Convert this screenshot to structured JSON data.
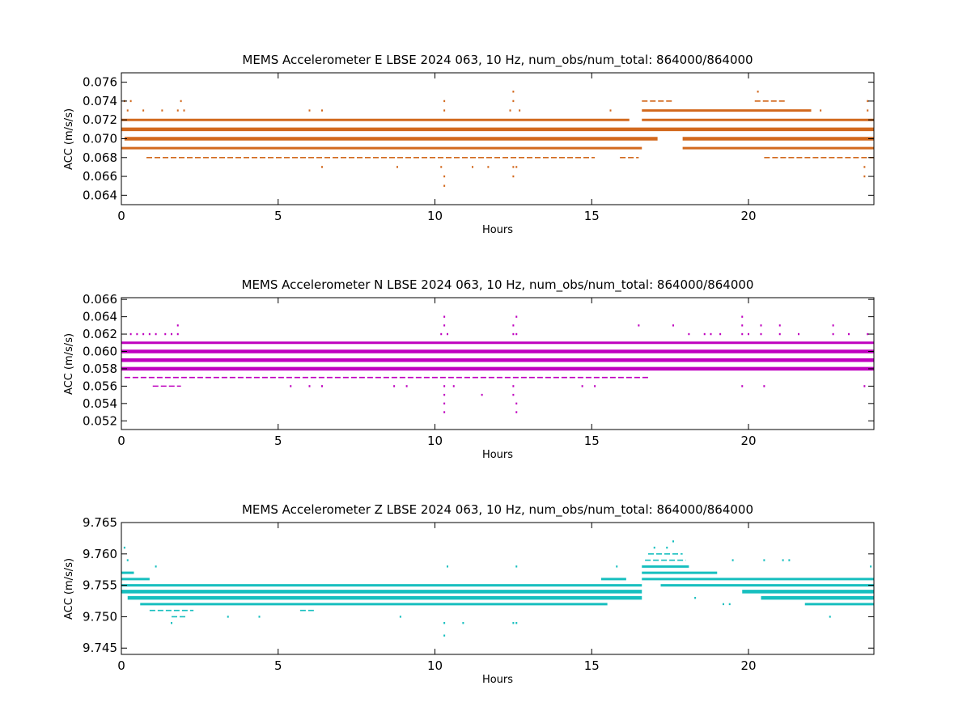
{
  "chart_data": [
    {
      "type": "scatter",
      "title": "MEMS Accelerometer E LBSE 2024 063, 10 Hz, num_obs/num_total: 864000/864000",
      "xlabel": "Hours",
      "ylabel": "ACC (m/s/s)",
      "xlim": [
        0,
        24
      ],
      "ylim": [
        0.063,
        0.077
      ],
      "xticks": [
        0,
        5,
        10,
        15,
        20
      ],
      "yticks": [
        0.064,
        0.066,
        0.068,
        0.07,
        0.072,
        0.074,
        0.076
      ],
      "yticklabels": [
        "0.064",
        "0.066",
        "0.068",
        "0.070",
        "0.072",
        "0.074",
        "0.076"
      ],
      "color": "#d2691e",
      "grid": false,
      "bands": [
        {
          "y": 0.071,
          "segments": [
            [
              0,
              24
            ]
          ],
          "weight": 3
        },
        {
          "y": 0.07,
          "segments": [
            [
              0.1,
              17.1
            ],
            [
              17.9,
              24
            ]
          ],
          "weight": 3
        },
        {
          "y": 0.072,
          "segments": [
            [
              0,
              16.2
            ],
            [
              16.6,
              24
            ]
          ],
          "weight": 2
        },
        {
          "y": 0.069,
          "segments": [
            [
              0,
              16.6
            ],
            [
              17.9,
              24
            ]
          ],
          "weight": 2
        },
        {
          "y": 0.073,
          "segments": [
            [
              16.6,
              22
            ]
          ],
          "weight": 2
        },
        {
          "y": 0.074,
          "segments": [
            [
              16.6,
              17.6
            ],
            [
              20.2,
              21.2
            ]
          ],
          "weight": 1
        },
        {
          "y": 0.068,
          "segments": [
            [
              0.8,
              15.1
            ],
            [
              15.9,
              16.5
            ],
            [
              20.5,
              24
            ]
          ],
          "weight": 1
        }
      ],
      "points": [
        {
          "x": 0.1,
          "y": 0.074
        },
        {
          "x": 0.3,
          "y": 0.074
        },
        {
          "x": 1.9,
          "y": 0.074
        },
        {
          "x": 10.3,
          "y": 0.074
        },
        {
          "x": 12.5,
          "y": 0.074
        },
        {
          "x": 12.5,
          "y": 0.075
        },
        {
          "x": 20.3,
          "y": 0.075
        },
        {
          "x": 23.8,
          "y": 0.074
        },
        {
          "x": 0.2,
          "y": 0.073
        },
        {
          "x": 0.7,
          "y": 0.073
        },
        {
          "x": 1.3,
          "y": 0.073
        },
        {
          "x": 1.8,
          "y": 0.073
        },
        {
          "x": 2.0,
          "y": 0.073
        },
        {
          "x": 6.0,
          "y": 0.073
        },
        {
          "x": 6.4,
          "y": 0.073
        },
        {
          "x": 10.3,
          "y": 0.073
        },
        {
          "x": 12.4,
          "y": 0.073
        },
        {
          "x": 12.7,
          "y": 0.073
        },
        {
          "x": 15.6,
          "y": 0.073
        },
        {
          "x": 22.3,
          "y": 0.073
        },
        {
          "x": 23.8,
          "y": 0.073
        },
        {
          "x": 6.4,
          "y": 0.067
        },
        {
          "x": 8.8,
          "y": 0.067
        },
        {
          "x": 10.2,
          "y": 0.067
        },
        {
          "x": 11.2,
          "y": 0.067
        },
        {
          "x": 11.7,
          "y": 0.067
        },
        {
          "x": 12.5,
          "y": 0.067
        },
        {
          "x": 12.6,
          "y": 0.067
        },
        {
          "x": 23.7,
          "y": 0.067
        },
        {
          "x": 10.3,
          "y": 0.066
        },
        {
          "x": 12.5,
          "y": 0.066
        },
        {
          "x": 23.7,
          "y": 0.066
        },
        {
          "x": 10.3,
          "y": 0.065
        }
      ]
    },
    {
      "type": "scatter",
      "title": "MEMS Accelerometer N LBSE 2024 063, 10 Hz, num_obs/num_total: 864000/864000",
      "xlabel": "Hours",
      "ylabel": "ACC (m/s/s)",
      "xlim": [
        0,
        24
      ],
      "ylim": [
        0.051,
        0.0662
      ],
      "xticks": [
        0,
        5,
        10,
        15,
        20
      ],
      "yticks": [
        0.052,
        0.054,
        0.056,
        0.058,
        0.06,
        0.062,
        0.064,
        0.066
      ],
      "yticklabels": [
        "0.052",
        "0.054",
        "0.056",
        "0.058",
        "0.060",
        "0.062",
        "0.064",
        "0.066"
      ],
      "color": "#bf00bf",
      "grid": false,
      "bands": [
        {
          "y": 0.06,
          "segments": [
            [
              0,
              24
            ]
          ],
          "weight": 3
        },
        {
          "y": 0.059,
          "segments": [
            [
              0,
              24
            ]
          ],
          "weight": 3
        },
        {
          "y": 0.058,
          "segments": [
            [
              0,
              24
            ]
          ],
          "weight": 3
        },
        {
          "y": 0.061,
          "segments": [
            [
              0,
              24
            ]
          ],
          "weight": 2
        },
        {
          "y": 0.057,
          "segments": [
            [
              0.1,
              16.8
            ]
          ],
          "weight": 1
        },
        {
          "y": 0.056,
          "segments": [
            [
              1.0,
              1.9
            ]
          ],
          "weight": 1
        }
      ],
      "points": [
        {
          "x": 10.3,
          "y": 0.064
        },
        {
          "x": 12.6,
          "y": 0.064
        },
        {
          "x": 19.8,
          "y": 0.064
        },
        {
          "x": 1.8,
          "y": 0.063
        },
        {
          "x": 10.3,
          "y": 0.063
        },
        {
          "x": 12.5,
          "y": 0.063
        },
        {
          "x": 16.5,
          "y": 0.063
        },
        {
          "x": 17.6,
          "y": 0.063
        },
        {
          "x": 19.8,
          "y": 0.063
        },
        {
          "x": 20.4,
          "y": 0.063
        },
        {
          "x": 21.0,
          "y": 0.063
        },
        {
          "x": 22.7,
          "y": 0.063
        },
        {
          "x": 0.3,
          "y": 0.062
        },
        {
          "x": 0.5,
          "y": 0.062
        },
        {
          "x": 0.7,
          "y": 0.062
        },
        {
          "x": 0.9,
          "y": 0.062
        },
        {
          "x": 1.1,
          "y": 0.062
        },
        {
          "x": 1.4,
          "y": 0.062
        },
        {
          "x": 1.6,
          "y": 0.062
        },
        {
          "x": 1.8,
          "y": 0.062
        },
        {
          "x": 10.2,
          "y": 0.062
        },
        {
          "x": 10.4,
          "y": 0.062
        },
        {
          "x": 12.5,
          "y": 0.062
        },
        {
          "x": 12.6,
          "y": 0.062
        },
        {
          "x": 18.1,
          "y": 0.062
        },
        {
          "x": 18.6,
          "y": 0.062
        },
        {
          "x": 18.8,
          "y": 0.062
        },
        {
          "x": 19.1,
          "y": 0.062
        },
        {
          "x": 19.8,
          "y": 0.062
        },
        {
          "x": 20.0,
          "y": 0.062
        },
        {
          "x": 20.4,
          "y": 0.062
        },
        {
          "x": 21.0,
          "y": 0.062
        },
        {
          "x": 21.6,
          "y": 0.062
        },
        {
          "x": 22.7,
          "y": 0.062
        },
        {
          "x": 23.2,
          "y": 0.062
        },
        {
          "x": 23.8,
          "y": 0.062
        },
        {
          "x": 5.4,
          "y": 0.056
        },
        {
          "x": 6.0,
          "y": 0.056
        },
        {
          "x": 6.4,
          "y": 0.056
        },
        {
          "x": 8.7,
          "y": 0.056
        },
        {
          "x": 9.1,
          "y": 0.056
        },
        {
          "x": 10.3,
          "y": 0.056
        },
        {
          "x": 10.6,
          "y": 0.056
        },
        {
          "x": 12.5,
          "y": 0.056
        },
        {
          "x": 14.7,
          "y": 0.056
        },
        {
          "x": 15.1,
          "y": 0.056
        },
        {
          "x": 19.8,
          "y": 0.056
        },
        {
          "x": 20.5,
          "y": 0.056
        },
        {
          "x": 23.7,
          "y": 0.056
        },
        {
          "x": 10.3,
          "y": 0.055
        },
        {
          "x": 11.5,
          "y": 0.055
        },
        {
          "x": 12.5,
          "y": 0.055
        },
        {
          "x": 10.3,
          "y": 0.054
        },
        {
          "x": 12.6,
          "y": 0.054
        },
        {
          "x": 10.3,
          "y": 0.053
        },
        {
          "x": 12.6,
          "y": 0.053
        }
      ]
    },
    {
      "type": "scatter",
      "title": "MEMS Accelerometer Z LBSE 2024 063, 10 Hz, num_obs/num_total: 864000/864000",
      "xlabel": "Hours",
      "ylabel": "ACC (m/s/s)",
      "xlim": [
        0,
        24
      ],
      "ylim": [
        9.744,
        9.765
      ],
      "xticks": [
        0,
        5,
        10,
        15,
        20
      ],
      "yticks": [
        9.745,
        9.75,
        9.755,
        9.76,
        9.765
      ],
      "yticklabels": [
        "9.745",
        "9.750",
        "9.755",
        "9.760",
        "9.765"
      ],
      "color": "#17bfbf",
      "grid": false,
      "bands": [
        {
          "y": 9.754,
          "segments": [
            [
              0,
              16.6
            ],
            [
              19.8,
              24
            ]
          ],
          "weight": 3
        },
        {
          "y": 9.753,
          "segments": [
            [
              0.2,
              16.6
            ],
            [
              20.4,
              24
            ]
          ],
          "weight": 3
        },
        {
          "y": 9.755,
          "segments": [
            [
              0,
              16.6
            ],
            [
              17.2,
              24
            ]
          ],
          "weight": 2
        },
        {
          "y": 9.752,
          "segments": [
            [
              0.6,
              15.5
            ],
            [
              21.8,
              24
            ]
          ],
          "weight": 2
        },
        {
          "y": 9.756,
          "segments": [
            [
              0,
              0.9
            ],
            [
              15.3,
              16.1
            ],
            [
              16.6,
              24
            ]
          ],
          "weight": 2
        },
        {
          "y": 9.757,
          "segments": [
            [
              0,
              0.4
            ],
            [
              16.6,
              19.0
            ]
          ],
          "weight": 2
        },
        {
          "y": 9.758,
          "segments": [
            [
              16.6,
              18.1
            ]
          ],
          "weight": 2
        },
        {
          "y": 9.759,
          "segments": [
            [
              16.7,
              18.0
            ]
          ],
          "weight": 1
        },
        {
          "y": 9.76,
          "segments": [
            [
              16.8,
              17.9
            ]
          ],
          "weight": 1
        },
        {
          "y": 9.751,
          "segments": [
            [
              0.9,
              2.3
            ],
            [
              5.7,
              6.2
            ]
          ],
          "weight": 1
        },
        {
          "y": 9.75,
          "segments": [
            [
              1.6,
              2.1
            ]
          ],
          "weight": 1
        }
      ],
      "points": [
        {
          "x": 17.6,
          "y": 9.762
        },
        {
          "x": 17.0,
          "y": 9.761
        },
        {
          "x": 17.4,
          "y": 9.761
        },
        {
          "x": 0.1,
          "y": 9.761
        },
        {
          "x": 0.2,
          "y": 9.759
        },
        {
          "x": 1.1,
          "y": 9.758
        },
        {
          "x": 10.4,
          "y": 9.758
        },
        {
          "x": 12.6,
          "y": 9.758
        },
        {
          "x": 15.8,
          "y": 9.758
        },
        {
          "x": 23.9,
          "y": 9.758
        },
        {
          "x": 19.5,
          "y": 9.759
        },
        {
          "x": 20.5,
          "y": 9.759
        },
        {
          "x": 21.1,
          "y": 9.759
        },
        {
          "x": 21.3,
          "y": 9.759
        },
        {
          "x": 23.8,
          "y": 9.756
        },
        {
          "x": 1.6,
          "y": 9.749
        },
        {
          "x": 10.3,
          "y": 9.749
        },
        {
          "x": 10.9,
          "y": 9.749
        },
        {
          "x": 12.5,
          "y": 9.749
        },
        {
          "x": 12.6,
          "y": 9.749
        },
        {
          "x": 10.3,
          "y": 9.747
        },
        {
          "x": 3.4,
          "y": 9.75
        },
        {
          "x": 4.4,
          "y": 9.75
        },
        {
          "x": 8.9,
          "y": 9.75
        },
        {
          "x": 19.2,
          "y": 9.752
        },
        {
          "x": 19.4,
          "y": 9.752
        },
        {
          "x": 18.3,
          "y": 9.753
        },
        {
          "x": 22.6,
          "y": 9.75
        }
      ]
    }
  ]
}
